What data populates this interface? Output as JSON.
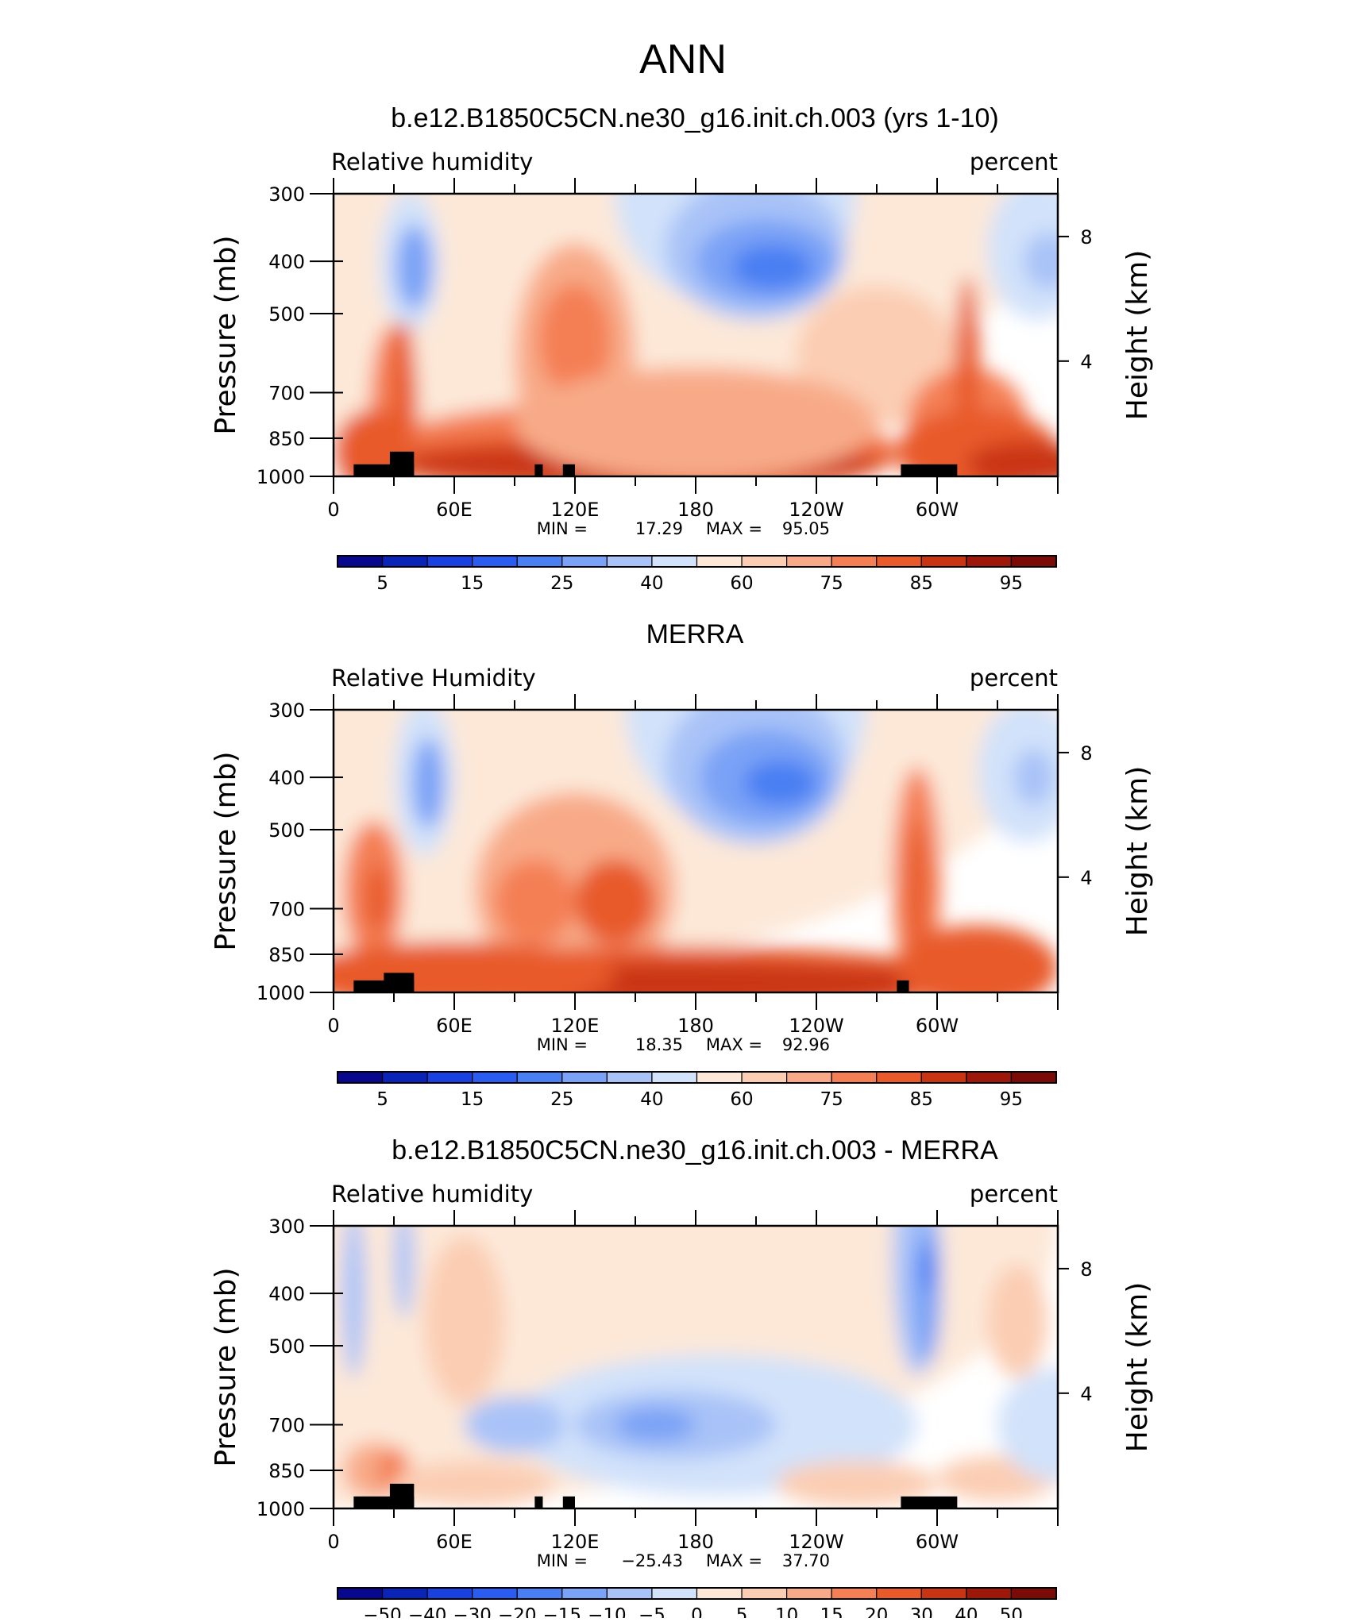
{
  "page_title": "ANN",
  "chart_data": [
    {
      "type": "heatmap",
      "title": "b.e12.B1850C5CN.ne30_g16.init.ch.003 (yrs 1-10)",
      "left_label": "Relative humidity",
      "right_label": "percent",
      "ylabel": "Pressure (mb)",
      "ylabel_right": "Height (km)",
      "yticks": [
        "300",
        "400",
        "500",
        "700",
        "850",
        "1000"
      ],
      "yticks_right": [
        "8",
        "4"
      ],
      "xticks": [
        "0",
        "60E",
        "120E",
        "180",
        "120W",
        "60W"
      ],
      "stats": {
        "min_label": "MIN =",
        "min": "17.29",
        "max_label": "MAX =",
        "max": "95.05"
      },
      "colorbar_labels": [
        "5",
        "15",
        "25",
        "40",
        "60",
        "75",
        "85",
        "95"
      ],
      "value_range": [
        17.29,
        95.05
      ]
    },
    {
      "type": "heatmap",
      "title": "MERRA",
      "left_label": "Relative Humidity",
      "right_label": "percent",
      "ylabel": "Pressure (mb)",
      "ylabel_right": "Height (km)",
      "yticks": [
        "300",
        "400",
        "500",
        "700",
        "850",
        "1000"
      ],
      "yticks_right": [
        "8",
        "4"
      ],
      "xticks": [
        "0",
        "60E",
        "120E",
        "180",
        "120W",
        "60W"
      ],
      "stats": {
        "min_label": "MIN =",
        "min": "18.35",
        "max_label": "MAX =",
        "max": "92.96"
      },
      "colorbar_labels": [
        "5",
        "15",
        "25",
        "40",
        "60",
        "75",
        "85",
        "95"
      ],
      "value_range": [
        18.35,
        92.96
      ]
    },
    {
      "type": "heatmap",
      "title": "b.e12.B1850C5CN.ne30_g16.init.ch.003 - MERRA",
      "left_label": "Relative humidity",
      "right_label": "percent",
      "ylabel": "Pressure (mb)",
      "ylabel_right": "Height (km)",
      "yticks": [
        "300",
        "400",
        "500",
        "700",
        "850",
        "1000"
      ],
      "yticks_right": [
        "8",
        "4"
      ],
      "xticks": [
        "0",
        "60E",
        "120E",
        "180",
        "120W",
        "60W"
      ],
      "stats": {
        "min_label": "MIN =",
        "min": "−25.43",
        "max_label": "MAX =",
        "max": "37.70"
      },
      "colorbar_labels": [
        "−50",
        "−40",
        "−30",
        "−20",
        "−15",
        "−10",
        "−5",
        "0",
        "5",
        "10",
        "15",
        "20",
        "30",
        "40",
        "50"
      ],
      "value_range": [
        -25.43,
        37.7
      ]
    }
  ],
  "colors": {
    "scale": [
      "#08088f",
      "#0b24b8",
      "#1841e0",
      "#2b5cf0",
      "#4a7ff3",
      "#7aa2f6",
      "#a9c3f8",
      "#d2e2fa",
      "#fde8d8",
      "#fbcdb3",
      "#f8aa88",
      "#f47f55",
      "#e85a2a",
      "#c93512",
      "#9d1808",
      "#7a0b06"
    ],
    "terrain": "#000000"
  }
}
